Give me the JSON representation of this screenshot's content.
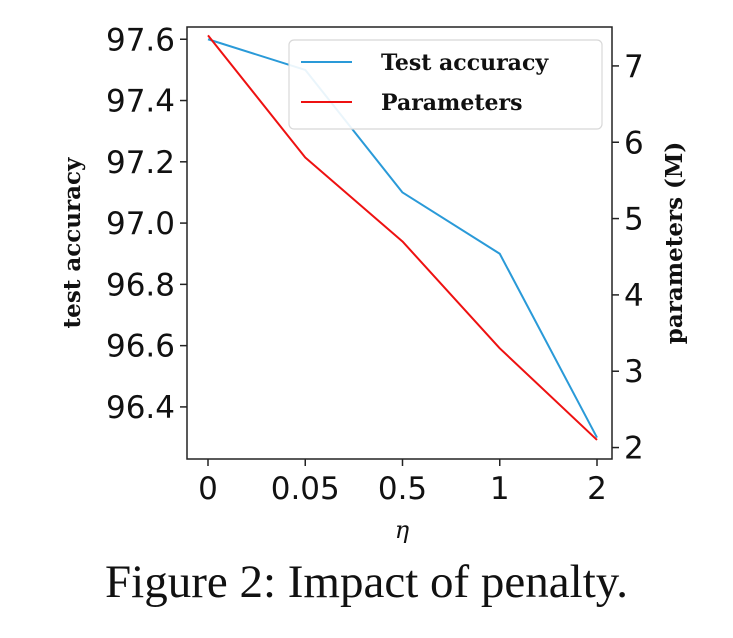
{
  "caption": "Figure 2: Impact of penalty.",
  "chart_data": {
    "type": "line",
    "categories": [
      "0",
      "0.05",
      "0.5",
      "1",
      "2"
    ],
    "xlabel": "η",
    "ylabel_left": "test accuracy",
    "ylabel_right": "parameters (M)",
    "y_left_ticks": [
      "96.4",
      "96.6",
      "96.8",
      "97.0",
      "97.2",
      "97.4",
      "97.6"
    ],
    "y_right_ticks": [
      "2",
      "3",
      "4",
      "5",
      "6",
      "7"
    ],
    "y_left_range": [
      96.23,
      97.64
    ],
    "y_right_range": [
      1.85,
      7.51
    ],
    "legend_position": "top-right",
    "grid": false,
    "series": [
      {
        "name": "Test accuracy",
        "axis": "left",
        "color": "#2a9ad8",
        "values": [
          97.6,
          97.5,
          97.1,
          96.9,
          96.3
        ]
      },
      {
        "name": "Parameters",
        "axis": "right",
        "color": "#ee1111",
        "values": [
          7.4,
          5.8,
          4.7,
          3.3,
          2.1
        ]
      }
    ]
  }
}
